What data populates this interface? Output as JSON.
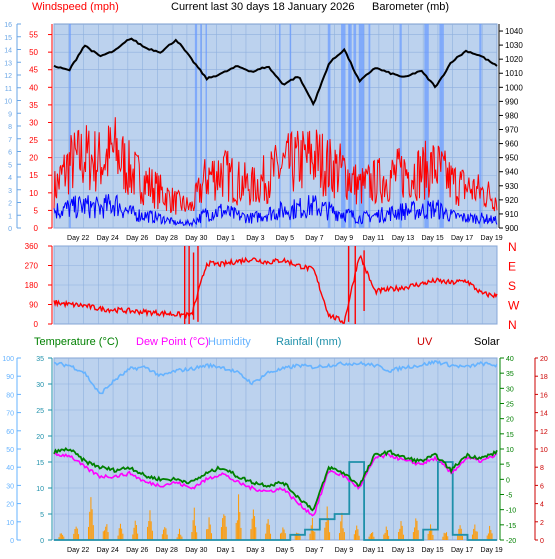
{
  "header": {
    "windspeed_label": "Windspeed (mph)",
    "title": "Current last 30 days 18 January 2026",
    "barometer_label": "Barometer (mb)"
  },
  "second_header": {
    "temperature_label": "Temperature (°C)",
    "dewpoint_label": "Dew Point (°C)",
    "humidity_label": "Humidity",
    "rainfall_label": "Rainfall (mm)",
    "uv_label": "UV",
    "solar_label": "Solar"
  },
  "colors": {
    "windspeed": "#ff0000",
    "wind_avg": "#0000ff",
    "barometer": "#000000",
    "temperature": "#008000",
    "dewpoint": "#ff00ff",
    "humidity": "#66b3ff",
    "rainfall": "#1e90aa",
    "uv": "#cc0000",
    "solar": "#ff9900",
    "panel_bg": "#bcd2ee",
    "band": "#6699ff"
  },
  "chart_data": [
    {
      "type": "line",
      "name_key": "wind-barometer",
      "x_tick_labels": [
        "Day 22",
        "Day 24",
        "Day 26",
        "Day 28",
        "Day 30",
        "Day 1",
        "Day 3",
        "Day 5",
        "Day 7",
        "Day 9",
        "Day 11",
        "Day 13",
        "Day 15",
        "Day 17",
        "Day 19"
      ],
      "left_axis_1_ticks": [
        "0",
        "1",
        "2",
        "3",
        "4",
        "5",
        "6",
        "7",
        "8",
        "9",
        "10",
        "11",
        "12",
        "13",
        "14",
        "15",
        "16"
      ],
      "left_axis_2_ticks": [
        "0",
        "5",
        "10",
        "15",
        "20",
        "25",
        "30",
        "35",
        "40",
        "45",
        "50",
        "55"
      ],
      "right_axis_ticks": [
        "900",
        "910",
        "920",
        "930",
        "940",
        "950",
        "960",
        "970",
        "980",
        "990",
        "1000",
        "1010",
        "1020",
        "1030",
        "1040"
      ],
      "ylim_wind": [
        0,
        58
      ],
      "ylim_baro": [
        900,
        1045
      ],
      "x_days": [
        0,
        1,
        2,
        3,
        4,
        5,
        6,
        7,
        8,
        9,
        10,
        11,
        12,
        13,
        14,
        15,
        16,
        17,
        18,
        19,
        20,
        21,
        22,
        23,
        24,
        25,
        26,
        27,
        28,
        29
      ],
      "barometer": [
        1015,
        1012,
        1030,
        1022,
        1026,
        1035,
        1028,
        1025,
        1034,
        1020,
        1006,
        1010,
        1015,
        1011,
        1015,
        1002,
        1008,
        988,
        1017,
        1027,
        1004,
        1014,
        1010,
        1007,
        1012,
        1000,
        1018,
        1026,
        1022,
        1015
      ],
      "gust_peak": [
        15,
        25,
        28,
        26,
        30,
        22,
        18,
        14,
        10,
        8,
        20,
        22,
        18,
        16,
        20,
        24,
        26,
        28,
        24,
        22,
        16,
        18,
        20,
        22,
        22,
        24,
        18,
        16,
        14,
        12
      ],
      "avg_peak": [
        7,
        8,
        9,
        8,
        10,
        6,
        5,
        4,
        2,
        2,
        6,
        7,
        5,
        4,
        6,
        7,
        8,
        9,
        7,
        6,
        4,
        5,
        6,
        7,
        7,
        8,
        5,
        4,
        4,
        3
      ]
    },
    {
      "type": "line",
      "name_key": "wind-direction",
      "left_ticks": [
        "0",
        "90",
        "180",
        "270",
        "360"
      ],
      "right_ticks": [
        "N",
        "W",
        "S",
        "E",
        "N"
      ],
      "ylim": [
        0,
        360
      ],
      "x_days": [
        0,
        1,
        2,
        3,
        4,
        5,
        6,
        7,
        8,
        9,
        10,
        11,
        12,
        13,
        14,
        15,
        16,
        17,
        18,
        19,
        20,
        21,
        22,
        23,
        24,
        25,
        26,
        27,
        28,
        29
      ],
      "direction": [
        100,
        90,
        85,
        70,
        65,
        60,
        55,
        50,
        45,
        40,
        280,
        275,
        290,
        300,
        285,
        295,
        270,
        250,
        40,
        10,
        320,
        150,
        160,
        170,
        185,
        200,
        190,
        200,
        140,
        130
      ]
    },
    {
      "type": "line",
      "name_key": "temp-hum-rain",
      "x_tick_labels": [
        "Day 22",
        "Day 24",
        "Day 26",
        "Day 28",
        "Day 30",
        "Day 1",
        "Day 3",
        "Day 5",
        "Day 7",
        "Day 9",
        "Day 11",
        "Day 13",
        "Day 15",
        "Day 17",
        "Day 19"
      ],
      "humidity_ticks": [
        "0",
        "10",
        "20",
        "30",
        "40",
        "50",
        "60",
        "70",
        "80",
        "90",
        "100"
      ],
      "rain_ticks": [
        "0",
        "5",
        "10",
        "15",
        "20",
        "25",
        "30",
        "35"
      ],
      "temp_ticks": [
        "-20",
        "-15",
        "-10",
        "-5",
        "0",
        "5",
        "10",
        "15",
        "20",
        "25",
        "30",
        "35",
        "40"
      ],
      "uv_ticks": [
        "0",
        "2",
        "4",
        "6",
        "8",
        "10",
        "12",
        "14",
        "16",
        "18",
        "20"
      ],
      "ylim_temp": [
        -20,
        40
      ],
      "ylim_hum": [
        0,
        100
      ],
      "ylim_rain": [
        0,
        35
      ],
      "x_days": [
        0,
        1,
        2,
        3,
        4,
        5,
        6,
        7,
        8,
        9,
        10,
        11,
        12,
        13,
        14,
        15,
        16,
        17,
        18,
        19,
        20,
        21,
        22,
        23,
        24,
        25,
        26,
        27,
        28,
        29
      ],
      "temperature": [
        9,
        10,
        6,
        4,
        3,
        4,
        1,
        0,
        0,
        -1,
        2,
        4,
        1,
        -1,
        -2,
        -1,
        -6,
        -10,
        4,
        2,
        -2,
        8,
        9,
        7,
        6,
        8,
        3,
        8,
        7,
        9
      ],
      "dewpoint": [
        8,
        8,
        4,
        1,
        1,
        2,
        -1,
        -2,
        -1,
        -3,
        0,
        2,
        -1,
        -3,
        -4,
        -3,
        -8,
        -12,
        3,
        1,
        -3,
        7,
        8,
        6,
        5,
        7,
        2,
        7,
        6,
        8
      ],
      "humidity": [
        97,
        96,
        92,
        80,
        88,
        94,
        95,
        90,
        93,
        94,
        96,
        95,
        92,
        86,
        92,
        94,
        96,
        95,
        96,
        97,
        97,
        96,
        93,
        95,
        96,
        98,
        96,
        95,
        97,
        96
      ],
      "rainfall": [
        0,
        0,
        0,
        0,
        0,
        0,
        0,
        0,
        0,
        0,
        0,
        0,
        0,
        0,
        0,
        0,
        1,
        2,
        4,
        5,
        15,
        0,
        0,
        0,
        0,
        2,
        15,
        1,
        0,
        0
      ],
      "solar_peak": [
        2,
        3,
        8,
        4,
        3,
        4,
        6,
        3,
        2,
        6,
        5,
        7,
        8,
        6,
        5,
        3,
        2,
        4,
        6,
        5,
        3,
        2,
        3,
        4,
        5,
        3,
        2,
        3,
        4,
        3
      ]
    }
  ]
}
